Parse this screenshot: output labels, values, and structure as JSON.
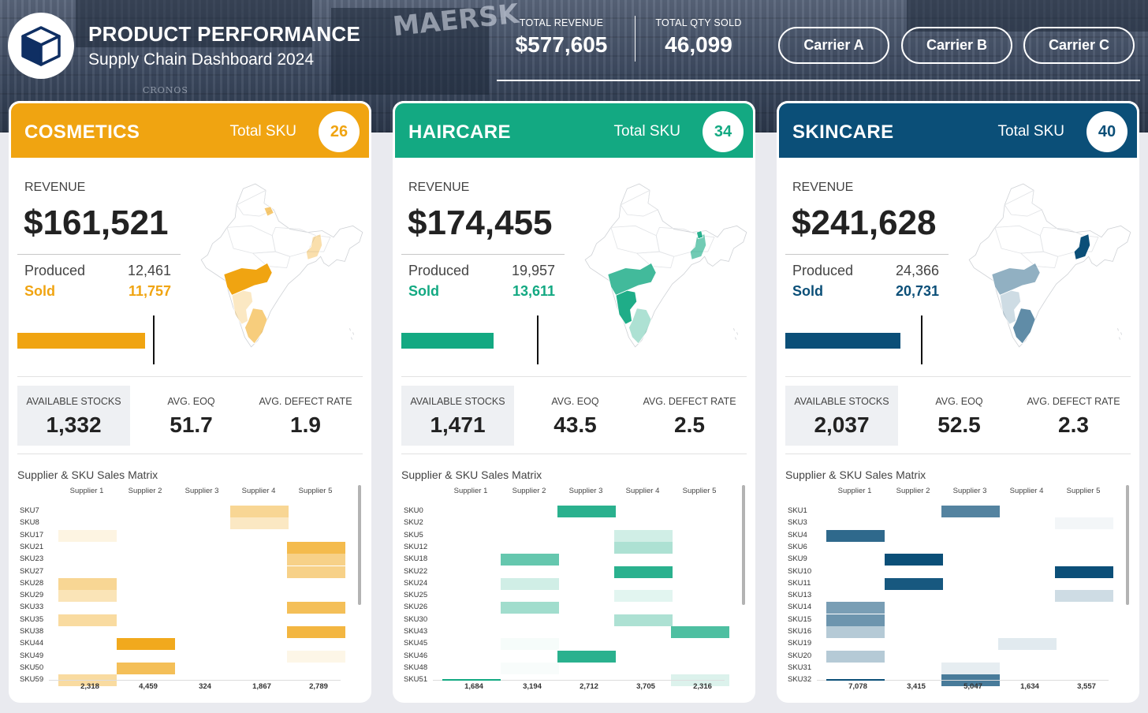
{
  "header": {
    "title": "PRODUCT PERFORMANCE",
    "subtitle": "Supply Chain Dashboard 2024",
    "kpis": [
      {
        "label": "TOTAL REVENUE",
        "value": "$577,605"
      },
      {
        "label": "TOTAL QTY SOLD",
        "value": "46,099"
      }
    ],
    "carriers": [
      "Carrier A",
      "Carrier B",
      "Carrier C"
    ],
    "background_text": [
      "MAERSK",
      "CRONOS"
    ]
  },
  "categories": [
    {
      "name": "COSMETICS",
      "color": "#f0a411",
      "total_sku_label": "Total SKU",
      "total_sku": "26",
      "revenue_label": "REVENUE",
      "revenue": "$161,521",
      "produced_label": "Produced",
      "produced": "12,461",
      "sold_label": "Sold",
      "sold": "11,757",
      "sold_fraction_of_produced": 0.944,
      "stats": [
        {
          "label": "AVAILABLE STOCKS",
          "value": "1,332"
        },
        {
          "label": "AVG. EOQ",
          "value": "51.7"
        },
        {
          "label": "AVG. DEFECT RATE",
          "value": "1.9"
        }
      ],
      "matrix": {
        "title": "Supplier & SKU Sales Matrix",
        "suppliers": [
          "Supplier 1",
          "Supplier 2",
          "Supplier 3",
          "Supplier 4",
          "Supplier 5"
        ],
        "skus": [
          "SKU7",
          "SKU8",
          "SKU17",
          "SKU21",
          "SKU23",
          "SKU27",
          "SKU28",
          "SKU29",
          "SKU33",
          "SKU35",
          "SKU38",
          "SKU44",
          "SKU49",
          "SKU50",
          "SKU59"
        ],
        "cells": [
          [
            0,
            3,
            0.45
          ],
          [
            1,
            3,
            0.25
          ],
          [
            2,
            0,
            0.12
          ],
          [
            3,
            4,
            0.75
          ],
          [
            4,
            4,
            0.5
          ],
          [
            5,
            4,
            0.5
          ],
          [
            6,
            0,
            0.45
          ],
          [
            7,
            0,
            0.3
          ],
          [
            8,
            4,
            0.7
          ],
          [
            9,
            0,
            0.4
          ],
          [
            10,
            4,
            0.8
          ],
          [
            11,
            1,
            0.95
          ],
          [
            12,
            4,
            0.1
          ],
          [
            13,
            1,
            0.7
          ],
          [
            14,
            0,
            0.4
          ]
        ],
        "totals": [
          "2,318",
          "4,459",
          "324",
          "1,867",
          "2,789"
        ]
      },
      "map_regions": [
        "maharashtra",
        "karnataka",
        "tamil_nadu",
        "west_bengal",
        "uttarakhand"
      ]
    },
    {
      "name": "HAIRCARE",
      "color": "#13a982",
      "total_sku_label": "Total SKU",
      "total_sku": "34",
      "revenue_label": "REVENUE",
      "revenue": "$174,455",
      "produced_label": "Produced",
      "produced": "19,957",
      "sold_label": "Sold",
      "sold": "13,611",
      "sold_fraction_of_produced": 0.682,
      "stats": [
        {
          "label": "AVAILABLE STOCKS",
          "value": "1,471"
        },
        {
          "label": "AVG. EOQ",
          "value": "43.5"
        },
        {
          "label": "AVG. DEFECT RATE",
          "value": "2.5"
        }
      ],
      "matrix": {
        "title": "Supplier & SKU Sales Matrix",
        "suppliers": [
          "Supplier 1",
          "Supplier 2",
          "Supplier 3",
          "Supplier 4",
          "Supplier 5"
        ],
        "skus": [
          "SKU0",
          "SKU2",
          "SKU5",
          "SKU12",
          "SKU18",
          "SKU22",
          "SKU24",
          "SKU25",
          "SKU26",
          "SKU30",
          "SKU43",
          "SKU45",
          "SKU46",
          "SKU48",
          "SKU51"
        ],
        "cells": [
          [
            0,
            2,
            0.9
          ],
          [
            2,
            3,
            0.2
          ],
          [
            3,
            3,
            0.35
          ],
          [
            4,
            1,
            0.65
          ],
          [
            5,
            3,
            0.9
          ],
          [
            6,
            1,
            0.2
          ],
          [
            7,
            3,
            0.12
          ],
          [
            8,
            1,
            0.4
          ],
          [
            9,
            3,
            0.35
          ],
          [
            10,
            4,
            0.75
          ],
          [
            11,
            1,
            0.04
          ],
          [
            12,
            2,
            0.9
          ],
          [
            13,
            1,
            0.03
          ],
          [
            14,
            4,
            0.15
          ]
        ],
        "totals": [
          "1,684",
          "3,194",
          "2,712",
          "3,705",
          "2,316"
        ]
      },
      "map_regions": [
        "maharashtra",
        "karnataka",
        "tamil_nadu",
        "west_bengal",
        "sikkim"
      ]
    },
    {
      "name": "SKINCARE",
      "color": "#0b4f78",
      "total_sku_label": "Total SKU",
      "total_sku": "40",
      "revenue_label": "REVENUE",
      "revenue": "$241,628",
      "produced_label": "Produced",
      "produced": "24,366",
      "sold_label": "Sold",
      "sold": "20,731",
      "sold_fraction_of_produced": 0.851,
      "stats": [
        {
          "label": "AVAILABLE STOCKS",
          "value": "2,037"
        },
        {
          "label": "AVG. EOQ",
          "value": "52.5"
        },
        {
          "label": "AVG. DEFECT RATE",
          "value": "2.3"
        }
      ],
      "matrix": {
        "title": "Supplier & SKU Sales Matrix",
        "suppliers": [
          "Supplier 1",
          "Supplier 2",
          "Supplier 3",
          "Supplier 4",
          "Supplier 5"
        ],
        "skus": [
          "SKU1",
          "SKU3",
          "SKU4",
          "SKU6",
          "SKU9",
          "SKU10",
          "SKU11",
          "SKU13",
          "SKU14",
          "SKU15",
          "SKU16",
          "SKU19",
          "SKU20",
          "SKU31",
          "SKU32"
        ],
        "cells": [
          [
            0,
            2,
            0.7
          ],
          [
            1,
            4,
            0.05
          ],
          [
            2,
            0,
            0.85
          ],
          [
            4,
            1,
            1.0
          ],
          [
            5,
            4,
            1.0
          ],
          [
            6,
            1,
            0.95
          ],
          [
            7,
            4,
            0.2
          ],
          [
            8,
            0,
            0.55
          ],
          [
            9,
            0,
            0.6
          ],
          [
            10,
            0,
            0.3
          ],
          [
            11,
            3,
            0.12
          ],
          [
            12,
            0,
            0.3
          ],
          [
            13,
            2,
            0.1
          ],
          [
            14,
            2,
            0.75
          ]
        ],
        "totals": [
          "7,078",
          "3,415",
          "5,047",
          "1,634",
          "3,557"
        ]
      },
      "map_regions": [
        "maharashtra",
        "karnataka",
        "tamil_nadu",
        "west_bengal"
      ]
    }
  ]
}
